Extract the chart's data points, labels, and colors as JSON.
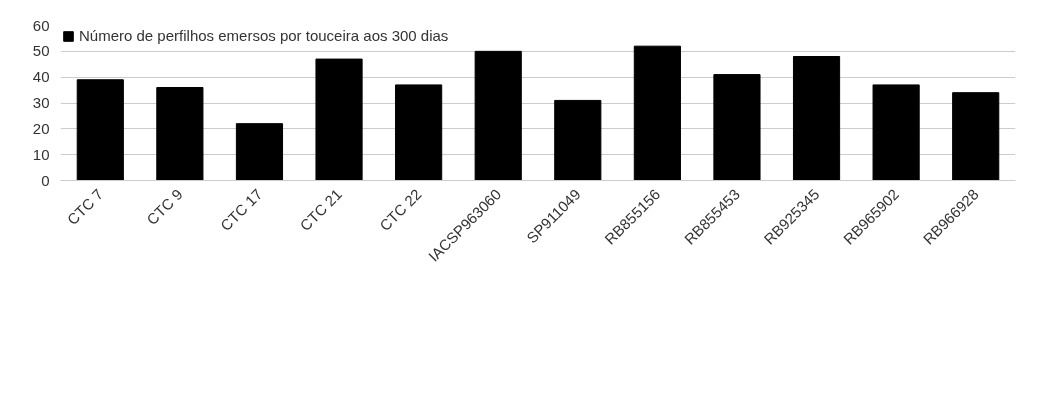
{
  "chart_data": {
    "type": "bar",
    "categories": [
      "CTC 7",
      "CTC 9",
      "CTC 17",
      "CTC 21",
      "CTC 22",
      "IACSP963060",
      "SP911049",
      "RB855156",
      "RB855453",
      "RB925345",
      "RB965902",
      "RB966928"
    ],
    "series": [
      {
        "name": "Número de perfilhos emersos por touceira aos 300 dias",
        "color": "#000000",
        "values": [
          39,
          36,
          22,
          47,
          37,
          50,
          31,
          52,
          41,
          48,
          37,
          34
        ]
      }
    ],
    "ylim": [
      0,
      60
    ],
    "yticks": [
      0,
      10,
      20,
      30,
      40,
      50,
      60
    ],
    "grid": "y",
    "legend": "top left"
  }
}
